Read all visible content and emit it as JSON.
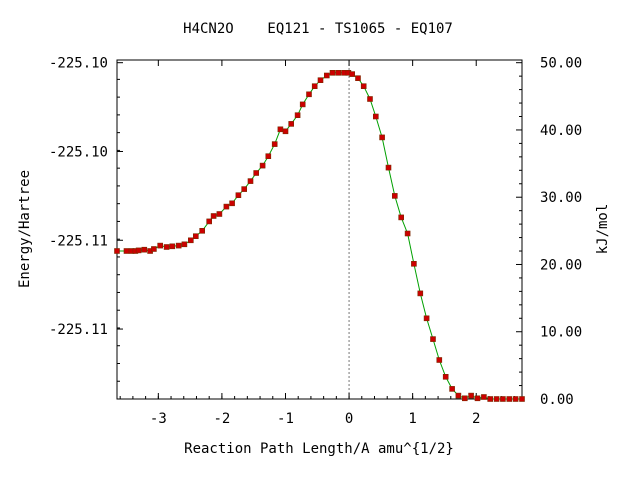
{
  "chart_data": {
    "type": "line",
    "title": "H4CN2O    EQ121 - TS1065 - EQ107",
    "xlabel": "Reaction Path Length/A amu^{1/2}",
    "ylabel_left": "Energy/Hartree",
    "ylabel_right": "kJ/mol",
    "xlim": [
      -3.65,
      2.72
    ],
    "ylim_right": [
      0,
      50.4
    ],
    "x_ticks": [
      {
        "value": -3,
        "label": "-3"
      },
      {
        "value": -2,
        "label": "-2"
      },
      {
        "value": -1,
        "label": "-1"
      },
      {
        "value": 0,
        "label": "0"
      },
      {
        "value": 1,
        "label": "1"
      },
      {
        "value": 2,
        "label": "2"
      }
    ],
    "left_ticks": [
      {
        "kj": 50.0,
        "label": "-225.10"
      },
      {
        "kj": 36.8,
        "label": "-225.10"
      },
      {
        "kj": 23.6,
        "label": "-225.11"
      },
      {
        "kj": 10.4,
        "label": "-225.11"
      }
    ],
    "right_ticks": [
      {
        "kj": 50,
        "label": "50.00"
      },
      {
        "kj": 40,
        "label": "40.00"
      },
      {
        "kj": 30,
        "label": "30.00"
      },
      {
        "kj": 20,
        "label": "20.00"
      },
      {
        "kj": 10,
        "label": "10.00"
      },
      {
        "kj": 0,
        "label": "0.00"
      }
    ],
    "ts_marker_x": 0,
    "line_color": "#00a000",
    "marker_color": "#cc0000",
    "series": [
      {
        "x": [
          -3.65,
          -3.5,
          -3.42,
          -3.36,
          -3.31,
          -3.22,
          -3.13,
          -3.07,
          -2.97,
          -2.87,
          -2.78,
          -2.68,
          -2.59,
          -2.49,
          -2.41,
          -2.31,
          -2.2,
          -2.13,
          -2.04,
          -1.93,
          -1.84,
          -1.74,
          -1.65,
          -1.55,
          -1.46,
          -1.36,
          -1.27,
          -1.17,
          -1.08,
          -1.0,
          -0.91,
          -0.81,
          -0.73,
          -0.63,
          -0.54,
          -0.45,
          -0.35,
          -0.26,
          -0.17,
          -0.08,
          -0.01,
          0.05,
          0.14,
          0.23,
          0.33,
          0.42,
          0.52,
          0.62,
          0.72,
          0.82,
          0.92,
          1.02,
          1.12,
          1.22,
          1.32,
          1.42,
          1.52,
          1.62,
          1.72,
          1.82,
          1.92,
          2.02,
          2.12,
          2.22,
          2.32,
          2.42,
          2.52,
          2.62,
          2.72
        ],
        "y": [
          22.0,
          22.0,
          22.0,
          22.0,
          22.1,
          22.2,
          22.0,
          22.3,
          22.8,
          22.6,
          22.7,
          22.8,
          23.0,
          23.6,
          24.2,
          25.0,
          26.4,
          27.2,
          27.5,
          28.6,
          29.1,
          30.3,
          31.2,
          32.4,
          33.6,
          34.7,
          36.1,
          37.9,
          40.1,
          39.8,
          40.9,
          42.2,
          43.8,
          45.3,
          46.5,
          47.4,
          48.1,
          48.5,
          48.5,
          48.5,
          48.5,
          48.3,
          47.7,
          46.5,
          44.6,
          42.0,
          38.9,
          34.4,
          30.2,
          27.0,
          24.6,
          20.1,
          15.7,
          12.0,
          8.9,
          5.8,
          3.3,
          1.5,
          0.5,
          0.1,
          0.5,
          0.1,
          0.3,
          0.0,
          0.0,
          0.0,
          0.0,
          0.0,
          0.0
        ]
      }
    ]
  }
}
